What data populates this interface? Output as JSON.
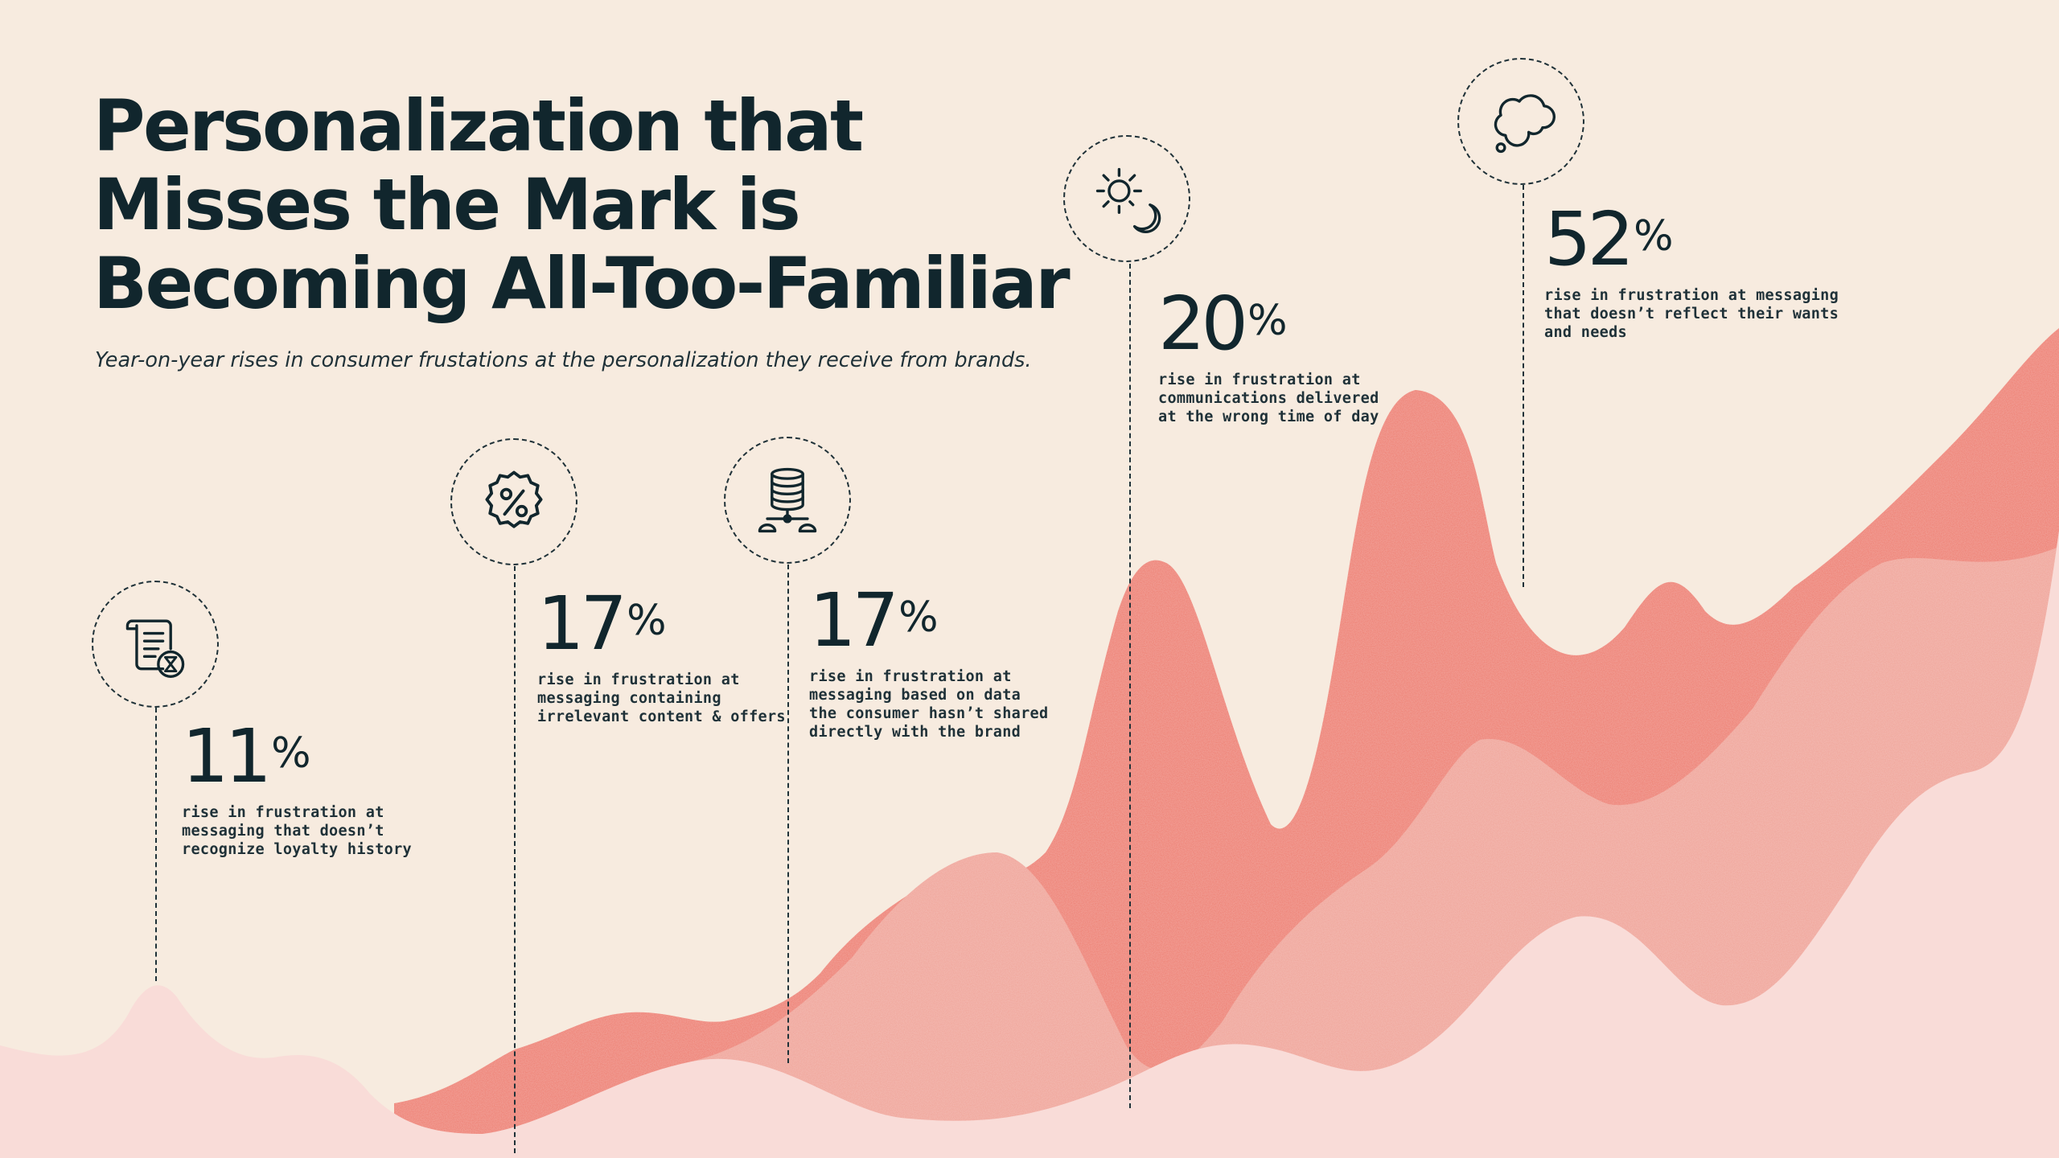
{
  "title_lines": [
    "Personalization that",
    "Misses the Mark is",
    "Becoming All-Too-Familiar"
  ],
  "subtitle": "Year-on-year rises in consumer frustations at the personalization they receive from brands.",
  "colors": {
    "background": "#f7ebdf",
    "text": "#11262d",
    "coral": "#ee7b6d",
    "pink_light": "#f9dcd8",
    "pink_mid": "#f0a397"
  },
  "stats": [
    {
      "value": "11",
      "unit": "%",
      "icon": "scroll-hourglass-icon",
      "lines": [
        "rise in frustration at",
        "messaging that doesn’t",
        "recognize loyalty history"
      ]
    },
    {
      "value": "17",
      "unit": "%",
      "icon": "percent-badge-icon",
      "lines": [
        "rise in frustration at",
        "messaging containing",
        "irrelevant content & offers"
      ]
    },
    {
      "value": "17",
      "unit": "%",
      "icon": "database-network-icon",
      "lines": [
        "rise in frustration at",
        "messaging based on data",
        "the consumer hasn’t shared",
        "directly with the brand"
      ]
    },
    {
      "value": "20",
      "unit": "%",
      "icon": "sun-moon-icon",
      "lines": [
        "rise in frustration at",
        "communications delivered",
        "at the wrong time of day"
      ]
    },
    {
      "value": "52",
      "unit": "%",
      "icon": "thought-cloud-icon",
      "lines": [
        "rise in frustration at messaging",
        "that doesn’t reflect their wants",
        "and needs"
      ]
    }
  ]
}
